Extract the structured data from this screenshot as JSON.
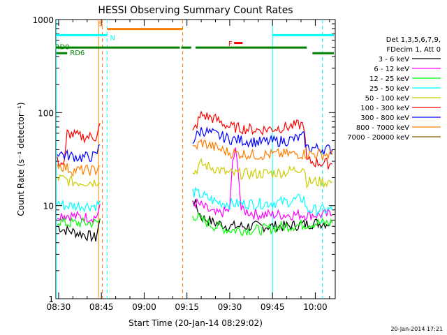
{
  "chart_data": {
    "type": "line",
    "title": "HESSI Observing Summary Count Rates",
    "xlabel": "Start Time (20-Jan-14 08:29:02)",
    "ylabel": "Count Rate (s⁻¹ detector⁻¹)",
    "y_scale": "log",
    "ylim": [
      1,
      1000
    ],
    "xlim": [
      "08:29:02",
      "10:07:00"
    ],
    "x_ticks": [
      "08:30",
      "08:45",
      "09:00",
      "09:15",
      "09:30",
      "09:45",
      "10:00"
    ],
    "y_ticks": [
      "1",
      "10",
      "100",
      "1000"
    ],
    "legend_header": [
      "Det 1,3,5,6,7,9,",
      "FDecim 1, Att 0"
    ],
    "series": [
      {
        "name": "3 - 6 keV",
        "color": "#000000",
        "points": [
          [
            "08:29:30",
            6
          ],
          [
            "08:32",
            5.5
          ],
          [
            "08:38",
            5
          ],
          [
            "08:43",
            4.5
          ],
          [
            "08:45",
            8
          ],
          [
            "09:17",
            12
          ],
          [
            "09:20",
            7.5
          ],
          [
            "09:25",
            6.5
          ],
          [
            "09:30",
            6
          ],
          [
            "09:40",
            6
          ],
          [
            "09:50",
            6
          ],
          [
            "10:00",
            6.5
          ],
          [
            "10:06",
            6.5
          ]
        ]
      },
      {
        "name": "6 - 12 keV",
        "color": "#ff00ff",
        "points": [
          [
            "08:29:30",
            8
          ],
          [
            "08:32",
            8
          ],
          [
            "08:38",
            7.5
          ],
          [
            "08:43",
            7.5
          ],
          [
            "08:45",
            10
          ],
          [
            "09:17",
            11
          ],
          [
            "09:20",
            10
          ],
          [
            "09:25",
            8
          ],
          [
            "09:30",
            9
          ],
          [
            "09:31",
            30
          ],
          [
            "09:32",
            38
          ],
          [
            "09:33",
            25
          ],
          [
            "09:34",
            9
          ],
          [
            "09:40",
            8
          ],
          [
            "09:50",
            8
          ],
          [
            "10:00",
            8
          ],
          [
            "10:06",
            8
          ]
        ]
      },
      {
        "name": "12 - 25 keV",
        "color": "#00ff00",
        "points": [
          [
            "08:29:30",
            7
          ],
          [
            "08:32",
            6.5
          ],
          [
            "08:38",
            6.5
          ],
          [
            "08:43",
            6.5
          ],
          [
            "08:45",
            7
          ],
          [
            "09:17",
            8
          ],
          [
            "09:20",
            7
          ],
          [
            "09:25",
            6
          ],
          [
            "09:30",
            5.5
          ],
          [
            "09:40",
            5.5
          ],
          [
            "09:50",
            6
          ],
          [
            "10:00",
            6.5
          ],
          [
            "10:06",
            6.5
          ]
        ]
      },
      {
        "name": "25 - 50 keV",
        "color": "#00ffff",
        "points": [
          [
            "08:29:30",
            11
          ],
          [
            "08:32",
            10
          ],
          [
            "08:38",
            10
          ],
          [
            "08:43",
            10
          ],
          [
            "08:45",
            11
          ],
          [
            "09:17",
            14
          ],
          [
            "09:20",
            13
          ],
          [
            "09:25",
            11
          ],
          [
            "09:30",
            10.5
          ],
          [
            "09:40",
            10.5
          ],
          [
            "09:50",
            11
          ],
          [
            "09:56",
            12
          ],
          [
            "09:57",
            9
          ],
          [
            "10:06",
            9
          ]
        ]
      },
      {
        "name": "50 - 100 keV",
        "color": "#cccc00",
        "points": [
          [
            "08:29:30",
            20
          ],
          [
            "08:32",
            19
          ],
          [
            "08:35",
            18
          ],
          [
            "08:43",
            18
          ],
          [
            "08:45",
            20
          ],
          [
            "09:17",
            22
          ],
          [
            "09:20",
            28
          ],
          [
            "09:25",
            25
          ],
          [
            "09:30",
            22
          ],
          [
            "09:40",
            22
          ],
          [
            "09:50",
            23
          ],
          [
            "09:56",
            26
          ],
          [
            "09:57",
            18
          ],
          [
            "10:06",
            18
          ]
        ]
      },
      {
        "name": "100 - 300 keV",
        "color": "#ff0000",
        "points": [
          [
            "08:29:30",
            30
          ],
          [
            "08:32",
            28
          ],
          [
            "08:33",
            60
          ],
          [
            "08:38",
            55
          ],
          [
            "08:43",
            55
          ],
          [
            "08:45",
            80
          ],
          [
            "09:17",
            60
          ],
          [
            "09:20",
            95
          ],
          [
            "09:25",
            85
          ],
          [
            "09:30",
            70
          ],
          [
            "09:40",
            65
          ],
          [
            "09:50",
            70
          ],
          [
            "09:56",
            75
          ],
          [
            "09:57",
            30
          ],
          [
            "10:06",
            28
          ]
        ]
      },
      {
        "name": "300 - 800 keV",
        "color": "#0000ff",
        "points": [
          [
            "08:29:30",
            38
          ],
          [
            "08:32",
            35
          ],
          [
            "08:35",
            34
          ],
          [
            "08:38",
            33
          ],
          [
            "08:43",
            34
          ],
          [
            "08:45",
            50
          ],
          [
            "09:17",
            50
          ],
          [
            "09:20",
            65
          ],
          [
            "09:25",
            58
          ],
          [
            "09:30",
            52
          ],
          [
            "09:40",
            48
          ],
          [
            "09:50",
            50
          ],
          [
            "09:56",
            55
          ],
          [
            "09:57",
            42
          ],
          [
            "10:06",
            40
          ]
        ]
      },
      {
        "name": "800 - 7000 keV",
        "color": "#ff8000",
        "points": [
          [
            "08:29:30",
            28
          ],
          [
            "08:32",
            26
          ],
          [
            "08:35",
            24
          ],
          [
            "08:43",
            24
          ],
          [
            "08:45",
            30
          ],
          [
            "09:17",
            40
          ],
          [
            "09:20",
            48
          ],
          [
            "09:25",
            42
          ],
          [
            "09:30",
            37
          ],
          [
            "09:40",
            35
          ],
          [
            "09:50",
            36
          ],
          [
            "10:00",
            36
          ],
          [
            "10:06",
            35
          ]
        ]
      },
      {
        "name": "7000 - 20000 keV",
        "color": "#8b5a00",
        "points": []
      }
    ],
    "annotations": [
      "S",
      "N",
      "F",
      "RD0",
      "RD6"
    ],
    "colors": {
      "S": "#ff8000",
      "N": "#00ffff",
      "F": "#ff0000",
      "RD0": "#008000",
      "RD6": "#008000",
      "night_lines": "#00ffff",
      "saa_lines": "#ff8000"
    }
  },
  "footer": {
    "timestamp": "20-Jan-2014 17:21"
  }
}
